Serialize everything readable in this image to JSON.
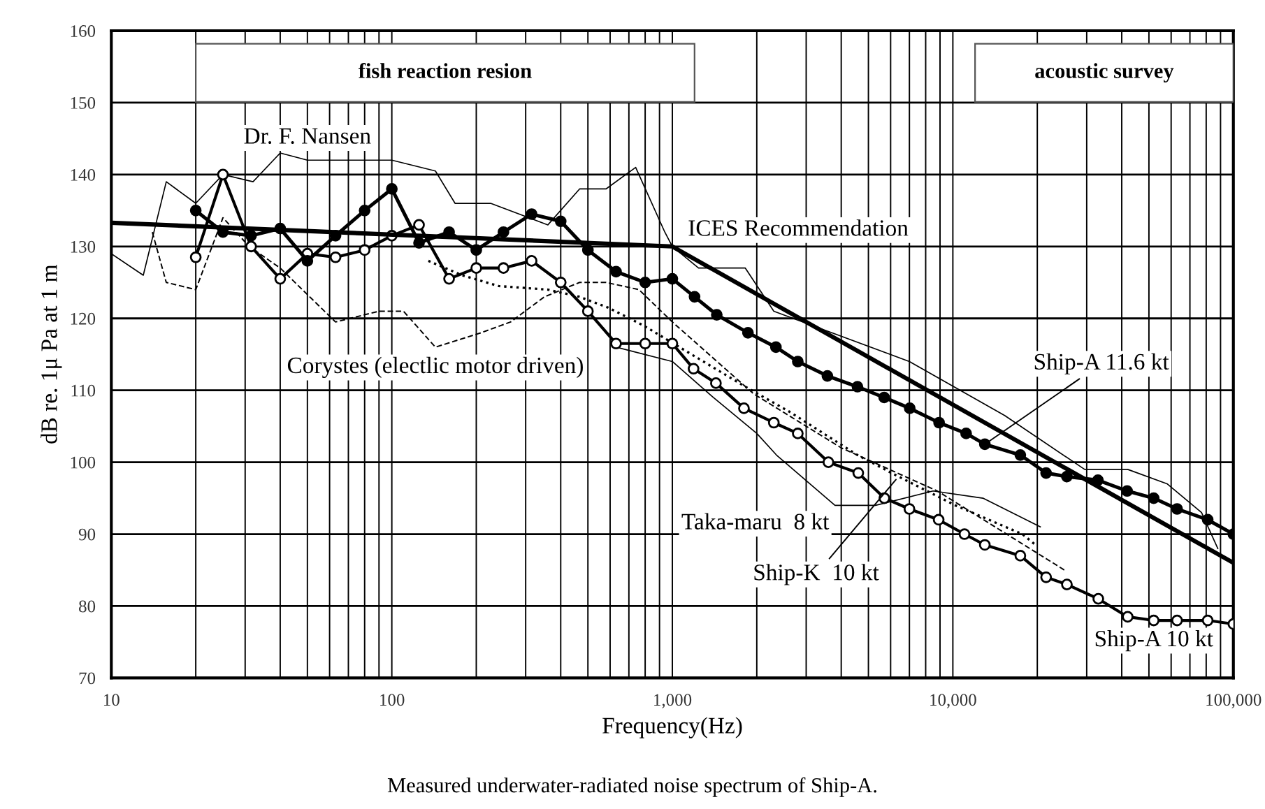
{
  "chart_data": {
    "type": "line",
    "xlabel": "Frequency(Hz)",
    "ylabel": "dB re. 1μ Pa at 1 m",
    "log": "x",
    "grid": true,
    "legend": false,
    "line_style": "solid",
    "xlim": [
      10,
      100000
    ],
    "xticks": [
      10,
      100,
      {
        "value": 1000,
        "label": "1,000"
      },
      {
        "value": 10000,
        "label": "10,000"
      },
      {
        "value": 100000,
        "label": "100,000"
      }
    ],
    "ylim": [
      70,
      160
    ],
    "yticks": [
      70,
      80,
      90,
      100,
      110,
      120,
      130,
      140,
      150,
      160
    ],
    "bands": [
      {
        "axis": "x",
        "from": 20,
        "to": 1200,
        "label": "fish reaction resion"
      },
      {
        "axis": "x",
        "from": 12000,
        "to": 100000,
        "label": "acoustic survey"
      }
    ],
    "annotations": [
      "Measured underwater-radiated noise spectrum of Ship-A."
    ],
    "series": [
      {
        "name": "Dr. F. Nansen",
        "color": "#000000",
        "marker": "none",
        "x": [
          10,
          13,
          15.7,
          20,
          25,
          32,
          40,
          50,
          80,
          100,
          143,
          168,
          225,
          360,
          467,
          580,
          740,
          940,
          1000,
          1240,
          1820,
          2300,
          7000,
          15300,
          29500,
          42000,
          58000,
          77000,
          88000
        ],
        "values": [
          129,
          126,
          139,
          136,
          140,
          139,
          143,
          142,
          142,
          142,
          140.5,
          136,
          136,
          133,
          138,
          138,
          141,
          132,
          130,
          127,
          127,
          121,
          114,
          106.5,
          99,
          99,
          97,
          93,
          88
        ]
      },
      {
        "name": "Corystes (electlic motor driven)",
        "color": "#000000",
        "marker": "none",
        "line_style": "dashed",
        "x": [
          14,
          15.7,
          20,
          25,
          31,
          40,
          63,
          90,
          110,
          143,
          208,
          265,
          350,
          467,
          580,
          760,
          1000,
          1950,
          4000,
          8800,
          25000
        ],
        "values": [
          132,
          125,
          124,
          134,
          130,
          127,
          119.5,
          121,
          121,
          116,
          118,
          119.5,
          123,
          125,
          125,
          124,
          119.5,
          109.5,
          102,
          96,
          85
        ]
      },
      {
        "name": "Taka-maru  8 kt",
        "color": "#000000",
        "marker": "none",
        "x": [
          630,
          1000,
          1400,
          2000,
          2350,
          3800,
          5300,
          8500,
          12800,
          20500
        ],
        "values": [
          116,
          114,
          109,
          104,
          101,
          94,
          94,
          96,
          95,
          91
        ]
      },
      {
        "name": "Ship-K  10 kt",
        "color": "#000000",
        "marker": "none",
        "line_style": "dotted",
        "x": [
          135,
          178,
          240,
          360,
          467,
          590,
          790,
          1820,
          2620,
          4570,
          6400,
          10200,
          17700,
          19700
        ],
        "values": [
          128,
          126,
          124.5,
          124,
          123,
          121.5,
          119,
          110.5,
          107,
          101,
          98,
          94,
          90,
          88.5
        ]
      },
      {
        "name": "Ship-A 10 kt",
        "color": "#000000",
        "marker": "circle",
        "x": [
          20,
          25,
          31.5,
          40,
          50,
          63,
          80,
          100,
          125,
          160,
          200,
          250,
          315,
          400,
          500,
          630,
          800,
          1000,
          1190,
          1430,
          1800,
          2300,
          2800,
          3600,
          4600,
          5700,
          7000,
          8900,
          11000,
          13000,
          17400,
          21500,
          25500,
          33000,
          42000,
          52000,
          63000,
          81000,
          100000
        ],
        "values": [
          128.5,
          140,
          130,
          125.5,
          129,
          128.5,
          129.5,
          131.5,
          133,
          125.5,
          127,
          127,
          128,
          125,
          121,
          116.5,
          116.5,
          116.5,
          113,
          111,
          107.5,
          105.5,
          104,
          100,
          98.5,
          95,
          93.5,
          92,
          90,
          88.5,
          87,
          84,
          83,
          81,
          78.5,
          78,
          78,
          78,
          77.5
        ]
      },
      {
        "name": "Ship-A 11.6 kt",
        "color": "#000000",
        "marker": "circle",
        "x": [
          20,
          25,
          31.5,
          40,
          50,
          63,
          80,
          100,
          125,
          160,
          200,
          250,
          315,
          400,
          500,
          630,
          800,
          1000,
          1200,
          1440,
          1860,
          2340,
          2800,
          3570,
          4570,
          5690,
          7020,
          8930,
          11150,
          13000,
          17400,
          21500,
          25500,
          32900,
          41800,
          52000,
          63000,
          81000,
          100000
        ],
        "values": [
          135,
          132,
          131.5,
          132.5,
          128,
          131.5,
          135,
          138,
          130.5,
          132,
          129.5,
          132,
          134.5,
          133.5,
          129.5,
          126.5,
          125,
          125.5,
          123,
          120.5,
          118,
          116,
          114,
          112,
          110.5,
          109,
          107.5,
          105.5,
          104,
          102.5,
          101,
          98.5,
          98,
          97.5,
          96,
          95,
          93.5,
          92,
          90
        ]
      },
      {
        "name": "ICES Recommendation",
        "color": "#000000",
        "marker": "none",
        "x": [
          10,
          1000,
          100000
        ],
        "values": [
          133.3,
          130,
          86
        ]
      }
    ]
  }
}
